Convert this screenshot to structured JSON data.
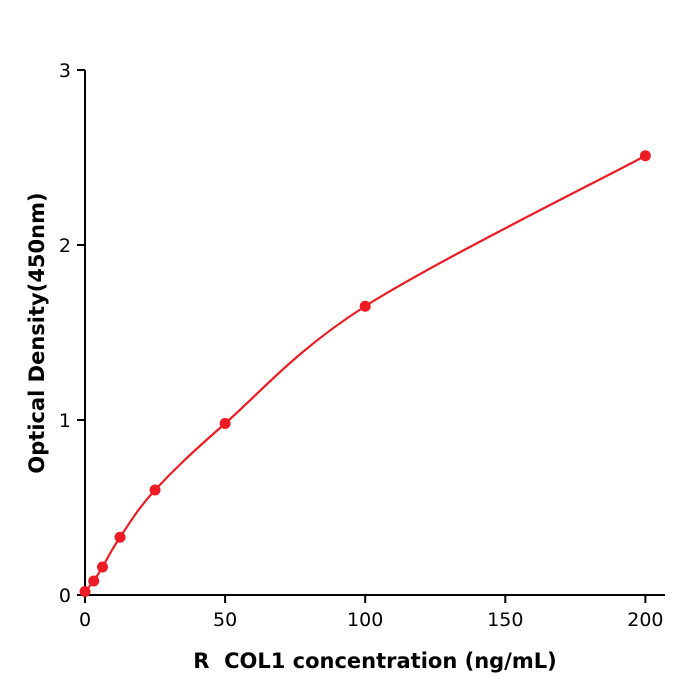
{
  "chart_data": {
    "type": "line",
    "title": "",
    "xlabel": "R  COL1 concentration (ng/mL)",
    "ylabel": "Optical Density(450nm)",
    "x": [
      0,
      3.125,
      6.25,
      12.5,
      25,
      50,
      100,
      200
    ],
    "y": [
      0.02,
      0.08,
      0.16,
      0.33,
      0.6,
      0.98,
      1.65,
      2.51
    ],
    "xlim": [
      0,
      207
    ],
    "ylim": [
      0,
      3
    ],
    "xticks": [
      0,
      50,
      100,
      150,
      200
    ],
    "yticks": [
      0,
      1,
      2,
      3
    ],
    "grid": false,
    "legend": null,
    "line_color": "#ed1c24",
    "marker_color": "#ed1c24",
    "axis_color": "#000000",
    "background": "#ffffff"
  }
}
